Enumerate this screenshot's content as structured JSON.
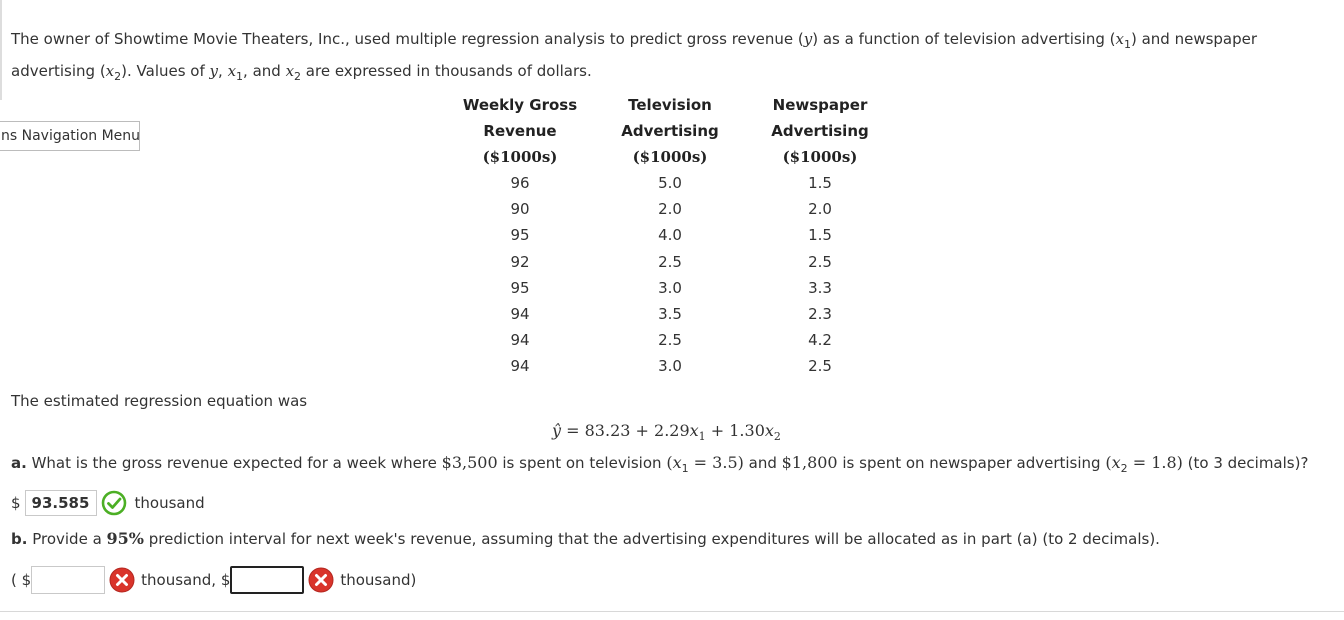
{
  "intro": {
    "p1": "The owner of Showtime Movie Theaters, Inc., used multiple regression analysis to predict gross revenue (",
    "y": "y",
    "p2": ") as a function of television advertising (",
    "x1": "x",
    "x1sub": "1",
    "p3": ") and newspaper advertising (",
    "x2": "x",
    "x2sub": "2",
    "p4": "). Values of ",
    "y2": "y",
    "p5": ", ",
    "x1b": "x",
    "x1bsub": "1",
    "p6": ", and ",
    "x2b": "x",
    "x2bsub": "2",
    "p7": " are expressed in thousands of dollars."
  },
  "nav": {
    "label": "ns Navigation Menu"
  },
  "table": {
    "headers": [
      {
        "line1": "Weekly Gross",
        "line2": "Revenue",
        "unit": "($1000s)"
      },
      {
        "line1": "Television",
        "line2": "Advertising",
        "unit": "($1000s)"
      },
      {
        "line1": "Newspaper",
        "line2": "Advertising",
        "unit": "($1000s)"
      }
    ],
    "rows": [
      [
        "96",
        "5.0",
        "1.5"
      ],
      [
        "90",
        "2.0",
        "2.0"
      ],
      [
        "95",
        "4.0",
        "1.5"
      ],
      [
        "92",
        "2.5",
        "2.5"
      ],
      [
        "95",
        "3.0",
        "3.3"
      ],
      [
        "94",
        "3.5",
        "2.3"
      ],
      [
        "94",
        "2.5",
        "4.2"
      ],
      [
        "94",
        "3.0",
        "2.5"
      ]
    ]
  },
  "estimated": {
    "text": "The estimated regression equation was"
  },
  "equation": {
    "yhat": "ŷ",
    "eqsign": " = 83.23 + 2.29",
    "x1": "x",
    "x1sub": "1",
    "plus": " + 1.30",
    "x2": "x",
    "x2sub": "2"
  },
  "question_a": {
    "label": "a.",
    "t1": " What is the gross revenue expected for a week where ",
    "amt1": "$3,500",
    "t2": " is spent on television ",
    "paren1": "(",
    "x1": "x",
    "x1sub": "1",
    "v1": " = 3.5)",
    "t3": " and ",
    "amt2": "$1,800",
    "t4": " is spent on newspaper advertising ",
    "paren2": "(",
    "x2": "x",
    "x2sub": "2",
    "v2": " = 1.8)",
    "t5": " (to 3 decimals)?"
  },
  "answer_a": {
    "dollar": "$",
    "value": "93.585",
    "unit": "thousand",
    "status": "correct"
  },
  "question_b": {
    "label": "b.",
    "t1": " Provide a ",
    "pct": "95%",
    "t2": " prediction interval for next week's revenue, assuming that the advertising expenditures will be allocated as in part (a) (to 2 decimals)."
  },
  "answer_b": {
    "open": "( $",
    "lower_value": "",
    "mid": "thousand, $",
    "upper_value": "",
    "close": "thousand)",
    "lower_status": "incorrect",
    "upper_status": "incorrect"
  },
  "colors": {
    "correct": "#4caf25",
    "incorrect": "#d9342b",
    "text": "#333333"
  },
  "icons": {
    "correct": "check-circle-icon",
    "incorrect": "x-circle-icon"
  }
}
